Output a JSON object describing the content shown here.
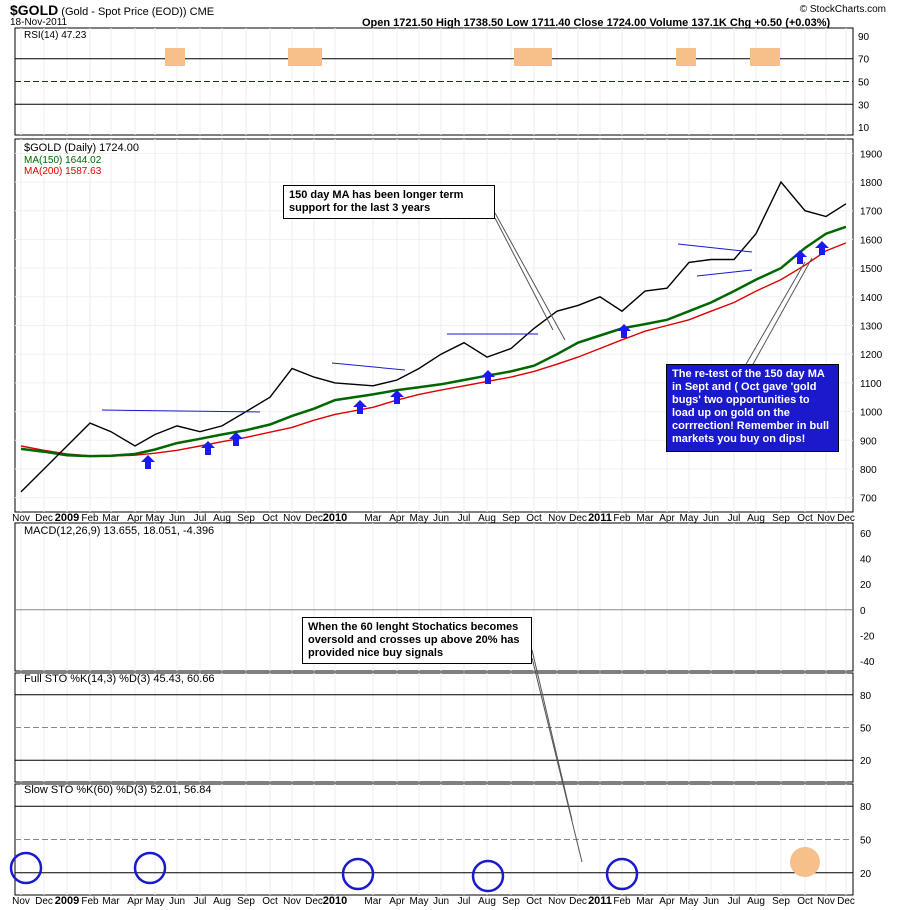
{
  "header": {
    "symbol": "$GOLD",
    "description": "(Gold - Spot Price (EOD)) CME",
    "date": "18-Nov-2011",
    "copyright": "© StockCharts.com",
    "ohlc_line": "Open 1721.50  High 1738.50  Low 1711.40  Close 1724.00  Volume 137.1K  Chg +0.50 (+0.03%)",
    "chg_arrow": "▲"
  },
  "panels": {
    "rsi": {
      "label": "RSI(14) 47.23",
      "ticks": [
        "90",
        "70",
        "50",
        "30",
        "10"
      ]
    },
    "price": {
      "label": "$GOLD (Daily) 1724.00",
      "ma150_label": "MA(150) 1644.02",
      "ma200_label": "MA(200) 1587.63",
      "ticks": [
        "1900",
        "1800",
        "1700",
        "1600",
        "1500",
        "1400",
        "1300",
        "1200",
        "1100",
        "1000",
        "900",
        "800",
        "700"
      ]
    },
    "macd": {
      "label": "MACD(12,26,9) 13.655, 18.051, -4.396",
      "ticks": [
        "60",
        "40",
        "20",
        "0",
        "-20",
        "-40"
      ]
    },
    "full_sto": {
      "label": "Full STO %K(14,3) %D(3) 45.43, 60.66",
      "ticks": [
        "80",
        "50",
        "20"
      ]
    },
    "slow_sto": {
      "label": "Slow STO %K(60) %D(3) 52.01, 56.84",
      "ticks": [
        "80",
        "50",
        "20"
      ]
    }
  },
  "x_axis_labels": [
    "Nov",
    "Dec",
    "2009",
    "Feb",
    "Mar",
    "Apr",
    "May",
    "Jun",
    "Jul",
    "Aug",
    "Sep",
    "Oct",
    "Nov",
    "Dec",
    "2010",
    "Mar",
    "Apr",
    "May",
    "Jun",
    "Jul",
    "Aug",
    "Sep",
    "Oct",
    "Nov",
    "Dec",
    "2011",
    "Feb",
    "Mar",
    "Apr",
    "May",
    "Jun",
    "Jul",
    "Aug",
    "Sep",
    "Oct",
    "Nov",
    "Dec"
  ],
  "annotations": {
    "ma_support": "150 day MA has been longer term support for the last 3 years",
    "retest": "The re-test of the 150 day MA in Sept and ( Oct gave 'gold bugs' two opportunities to load up on gold on the corrrection!  Remember in bull markets you buy on dips!",
    "stochastics": "When the 60 lenght Stochatics becomes oversold and crosses up above 20% has provided nice buy signals"
  },
  "colors": {
    "price": "#000000",
    "ma150": "#006600",
    "ma200": "#dd0000",
    "rsi": "#1a1a99",
    "arrow": "#1a1aee",
    "circle": "#1a1acc",
    "highlight": "#f5c08a"
  },
  "chart_data": {
    "type": "line",
    "x": [
      "2008-11",
      "2008-12",
      "2009-01",
      "2009-02",
      "2009-03",
      "2009-04",
      "2009-05",
      "2009-06",
      "2009-07",
      "2009-08",
      "2009-09",
      "2009-10",
      "2009-11",
      "2009-12",
      "2010-01",
      "2010-02",
      "2010-03",
      "2010-04",
      "2010-05",
      "2010-06",
      "2010-07",
      "2010-08",
      "2010-09",
      "2010-10",
      "2010-11",
      "2010-12",
      "2011-01",
      "2011-02",
      "2011-03",
      "2011-04",
      "2011-05",
      "2011-06",
      "2011-07",
      "2011-08",
      "2011-09",
      "2011-10",
      "2011-11"
    ],
    "series": [
      {
        "name": "$GOLD",
        "values": [
          720,
          800,
          880,
          960,
          930,
          880,
          920,
          950,
          930,
          950,
          1000,
          1050,
          1150,
          1120,
          1100,
          1090,
          1110,
          1150,
          1200,
          1240,
          1190,
          1220,
          1290,
          1350,
          1370,
          1400,
          1350,
          1420,
          1430,
          1520,
          1530,
          1530,
          1620,
          1800,
          1700,
          1680,
          1724
        ]
      },
      {
        "name": "MA(150)",
        "values": [
          870,
          860,
          848,
          845,
          846,
          852,
          868,
          890,
          905,
          920,
          935,
          955,
          985,
          1010,
          1040,
          1060,
          1075,
          1085,
          1095,
          1110,
          1125,
          1140,
          1160,
          1200,
          1240,
          1265,
          1290,
          1305,
          1320,
          1350,
          1380,
          1420,
          1460,
          1500,
          1570,
          1620,
          1644
        ]
      },
      {
        "name": "MA(200)",
        "values": [
          880,
          865,
          852,
          846,
          845,
          848,
          855,
          865,
          880,
          895,
          910,
          928,
          945,
          970,
          990,
          1015,
          1040,
          1060,
          1075,
          1090,
          1105,
          1120,
          1140,
          1165,
          1190,
          1220,
          1250,
          1280,
          1300,
          1320,
          1350,
          1380,
          1420,
          1460,
          1510,
          1560,
          1588
        ]
      }
    ],
    "ylim": [
      650,
      1950
    ]
  }
}
